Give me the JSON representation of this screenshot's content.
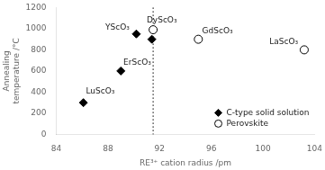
{
  "chart_data": {
    "type": "scatter",
    "xlabel": "RE³⁺ cation radius /pm",
    "ylabel": "Annealing\ntemperature /°C",
    "xlim": [
      84,
      104
    ],
    "ylim": [
      0,
      1200
    ],
    "xticks": [
      84,
      88,
      92,
      96,
      100,
      104
    ],
    "yticks": [
      0,
      200,
      400,
      600,
      800,
      1000,
      1200
    ],
    "grid": false,
    "legend": "lower right",
    "series": [
      {
        "name": "C-type solid solution",
        "marker": "diamond",
        "color": "#000000",
        "x": [
          86.1,
          89.0,
          90.2,
          91.4
        ],
        "values": [
          300,
          600,
          950,
          900
        ]
      },
      {
        "name": "Perovskite",
        "marker": "circle",
        "color": "#ffffff",
        "x": [
          91.5,
          95.0,
          103.2
        ],
        "values": [
          990,
          900,
          800
        ]
      }
    ],
    "annotations": [
      {
        "text": "LuScO₃",
        "x": 86.3,
        "y": 370
      },
      {
        "text": "ErScO₃",
        "x": 89.2,
        "y": 640
      },
      {
        "text": "YScO₃",
        "x": 87.8,
        "y": 970
      },
      {
        "text": "DyScO₃",
        "x": 91.0,
        "y": 1040
      },
      {
        "text": "GdScO₃",
        "x": 95.3,
        "y": 940
      },
      {
        "text": "LaScO₃",
        "x": 100.5,
        "y": 840
      }
    ],
    "vlines": [
      {
        "x": 91.5,
        "line_style": "dotted"
      }
    ]
  }
}
